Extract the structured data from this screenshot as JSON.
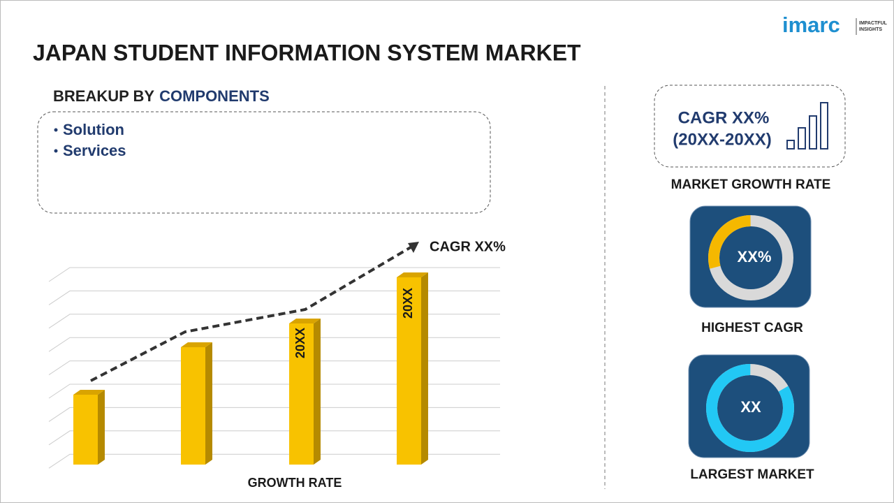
{
  "header": {
    "title": "JAPAN STUDENT INFORMATION SYSTEM MARKET",
    "logo": {
      "name": "imarc",
      "tagline_1": "IMPACTFUL",
      "tagline_2": "INSIGHTS"
    }
  },
  "breakup": {
    "label": "BREAKUP BY",
    "highlight": "COMPONENTS",
    "items": [
      "Solution",
      "Services"
    ]
  },
  "growth_chart": {
    "cagr_label": "CAGR XX%",
    "bar_labels": [
      "20XX",
      "20XX"
    ],
    "axis_label": "GROWTH RATE"
  },
  "side": {
    "cagr": "CAGR XX%",
    "period": "(20XX-20XX)",
    "cagr_caption": "MARKET GROWTH RATE",
    "highest": {
      "value": "XX%",
      "caption": "HIGHEST CAGR"
    },
    "largest": {
      "value": "XX",
      "caption": "LARGEST MARKET"
    }
  }
}
